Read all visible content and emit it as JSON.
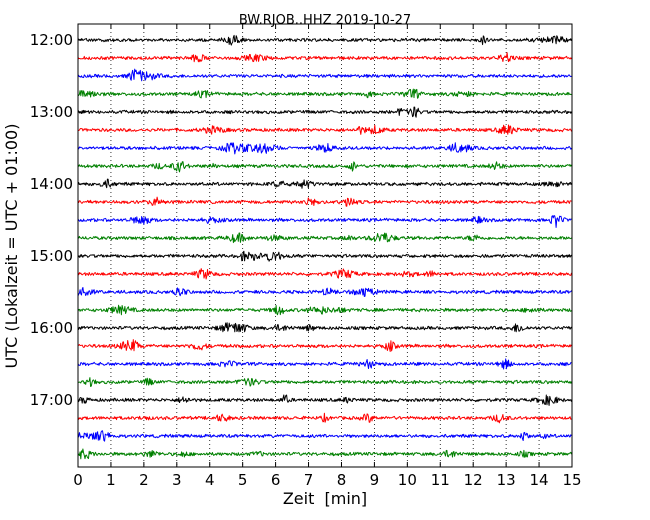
{
  "chart_data": {
    "type": "line",
    "title": "BW.RJOB..HHZ 2019-10-27",
    "xlabel": "Zeit  [min]",
    "ylabel": "UTC (Lokalzeit = UTC + 01:00)",
    "xlim": [
      0,
      15
    ],
    "x_ticks": [
      "0",
      "1",
      "2",
      "3",
      "4",
      "5",
      "6",
      "7",
      "8",
      "9",
      "10",
      "11",
      "12",
      "13",
      "14",
      "15"
    ],
    "y_ticks": [
      {
        "label": "12:00",
        "row": 0
      },
      {
        "label": "13:00",
        "row": 4
      },
      {
        "label": "14:00",
        "row": 8
      },
      {
        "label": "15:00",
        "row": 12
      },
      {
        "label": "16:00",
        "row": 16
      },
      {
        "label": "17:00",
        "row": 20
      }
    ],
    "grid": "vertical dotted at each minute",
    "trace_colors": [
      "#000000",
      "#ff0000",
      "#0000ff",
      "#008000"
    ],
    "traces": [
      {
        "start": "12:00",
        "color": "#000000"
      },
      {
        "start": "12:15",
        "color": "#ff0000"
      },
      {
        "start": "12:30",
        "color": "#0000ff"
      },
      {
        "start": "12:45",
        "color": "#008000"
      },
      {
        "start": "13:00",
        "color": "#000000"
      },
      {
        "start": "13:15",
        "color": "#ff0000"
      },
      {
        "start": "13:30",
        "color": "#0000ff"
      },
      {
        "start": "13:45",
        "color": "#008000"
      },
      {
        "start": "14:00",
        "color": "#000000"
      },
      {
        "start": "14:15",
        "color": "#ff0000"
      },
      {
        "start": "14:30",
        "color": "#0000ff"
      },
      {
        "start": "14:45",
        "color": "#008000"
      },
      {
        "start": "15:00",
        "color": "#000000"
      },
      {
        "start": "15:15",
        "color": "#ff0000"
      },
      {
        "start": "15:30",
        "color": "#0000ff"
      },
      {
        "start": "15:45",
        "color": "#008000"
      },
      {
        "start": "16:00",
        "color": "#000000"
      },
      {
        "start": "16:15",
        "color": "#ff0000"
      },
      {
        "start": "16:30",
        "color": "#0000ff"
      },
      {
        "start": "16:45",
        "color": "#008000"
      },
      {
        "start": "17:00",
        "color": "#000000"
      },
      {
        "start": "17:15",
        "color": "#ff0000"
      },
      {
        "start": "17:30",
        "color": "#0000ff"
      },
      {
        "start": "17:45",
        "color": "#008000"
      }
    ]
  }
}
